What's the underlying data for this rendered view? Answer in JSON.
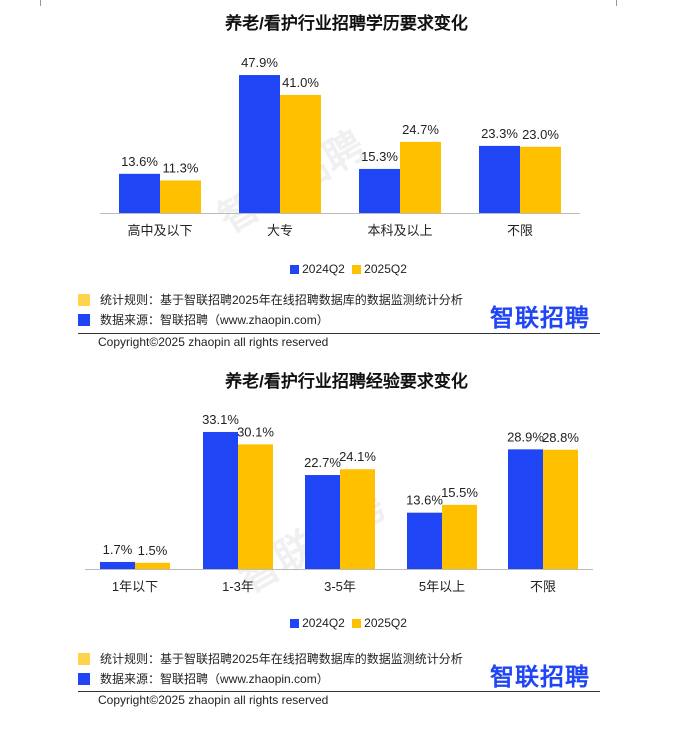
{
  "colors": {
    "s2024": "#1f45f5",
    "s2025": "#ffc000"
  },
  "footer": {
    "rule_label": "统计规则：基于智联招聘2025年在线招聘数据库的数据监测统计分析",
    "source_label": "数据来源：智联招聘（www.zhaopin.com）",
    "logo": "智联招聘",
    "copyright": "Copyright©2025 zhaopin all rights reserved",
    "watermark": "智联招聘"
  },
  "chart_data": [
    {
      "type": "bar",
      "title": "养老/看护行业招聘学历要求变化",
      "categories": [
        "高中及以下",
        "大专",
        "本科及以上",
        "不限"
      ],
      "series": [
        {
          "name": "2024Q2",
          "values": [
            13.6,
            47.9,
            15.3,
            23.3
          ]
        },
        {
          "name": "2025Q2",
          "values": [
            11.3,
            41.0,
            24.7,
            23.0
          ]
        }
      ],
      "value_format": "%",
      "legend": "bottom-center",
      "grid": false
    },
    {
      "type": "bar",
      "title": "养老/看护行业招聘经验要求变化",
      "categories": [
        "1年以下",
        "1-3年",
        "3-5年",
        "5年以上",
        "不限"
      ],
      "series": [
        {
          "name": "2024Q2",
          "values": [
            1.7,
            33.1,
            22.7,
            13.6,
            28.9
          ]
        },
        {
          "name": "2025Q2",
          "values": [
            1.5,
            30.1,
            24.1,
            15.5,
            28.8
          ]
        }
      ],
      "value_format": "%",
      "legend": "bottom-center",
      "grid": false
    }
  ]
}
